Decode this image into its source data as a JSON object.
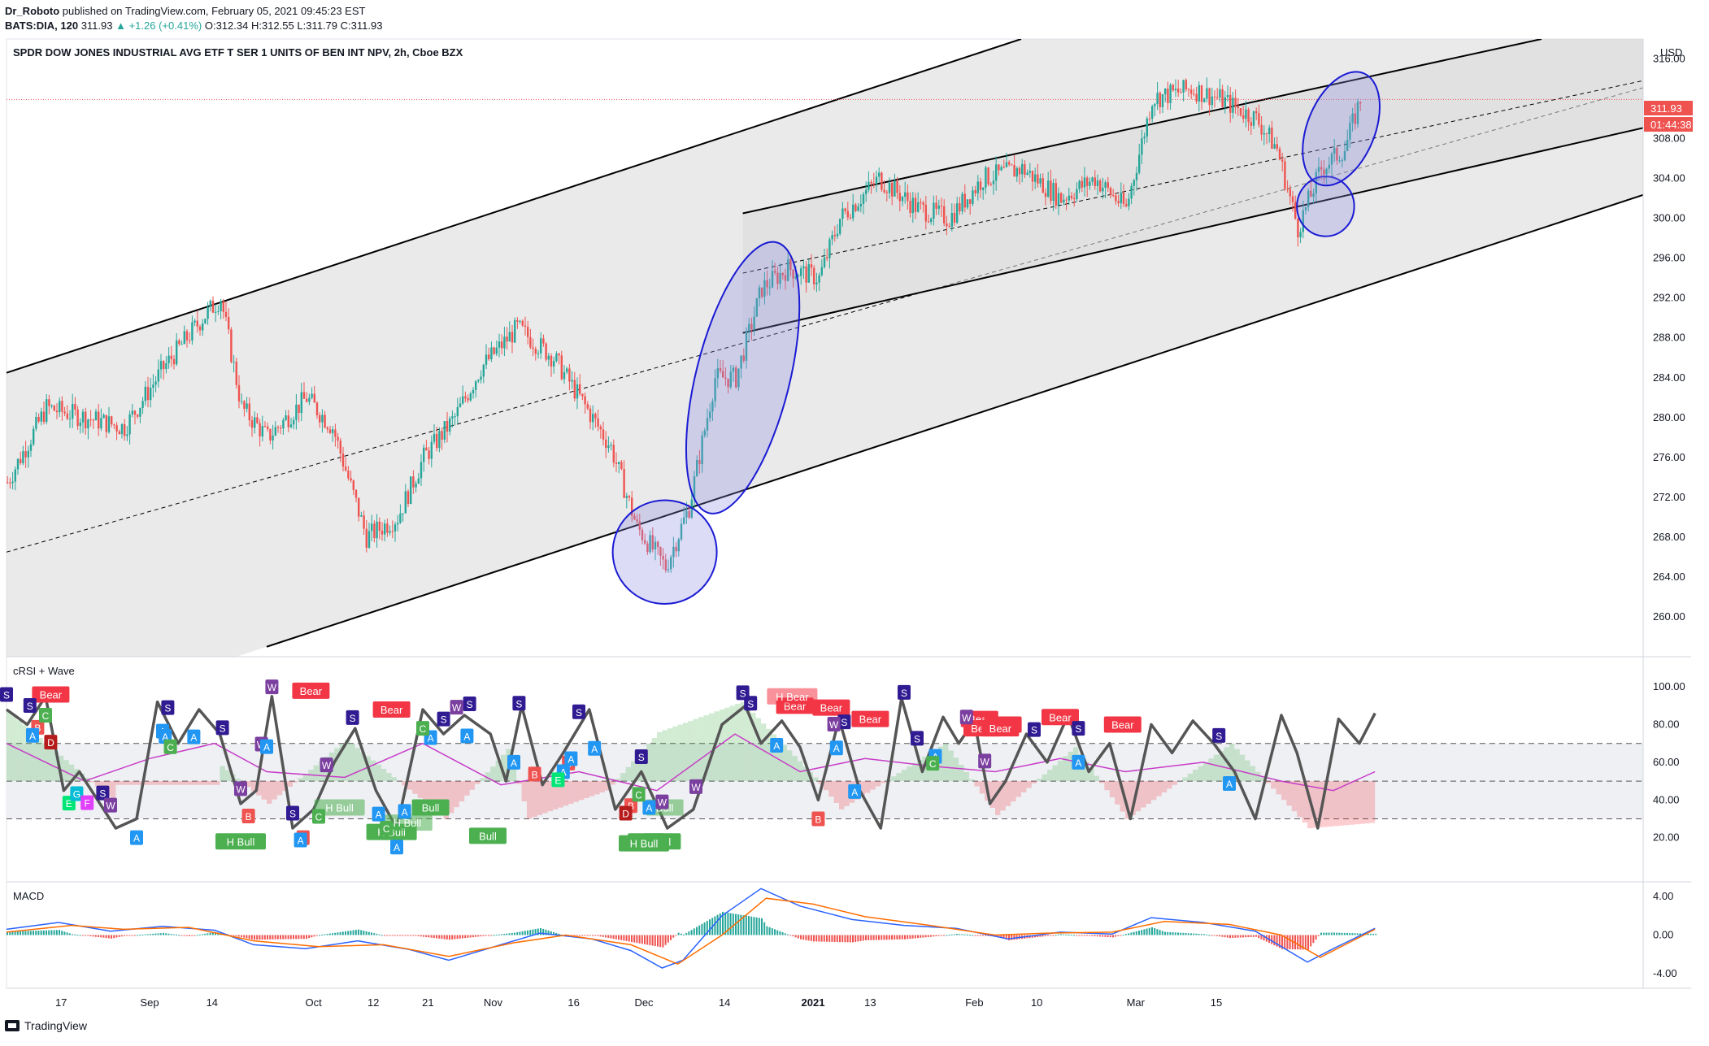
{
  "header": {
    "author": "Dr_Roboto",
    "published": "published on TradingView.com, February 05, 2021 09:45:23 EST",
    "symbol": "BATS:DIA, 120",
    "last": "311.93",
    "change": "▲ +1.26 (+0.41%)",
    "open_label": "O:",
    "open": "312.34",
    "high_label": "H:",
    "high": "312.55",
    "low_label": "L:",
    "low": "311.79",
    "close_label": "C:",
    "close": "311.93",
    "title": "SPDR DOW JONES INDUSTRIAL AVG ETF T SER 1 UNITS OF BEN INT NPV, 2h, Cboe BZX"
  },
  "currency": "USD",
  "price_badge": {
    "price": "311.93",
    "countdown": "01:44:38"
  },
  "footer": {
    "brand": "TradingView"
  },
  "colors": {
    "up": "#26a69a",
    "down": "#ef5350",
    "channel_fill": "#d9d9d9",
    "ellipse_fill": "#8c8ce6",
    "ellipse_stroke": "#1a1ad4",
    "bear": "#f23645",
    "bull": "#4caf50",
    "rsi_line": "#555555",
    "rsi_ma": "#c83cc8",
    "macd": "#2962ff",
    "signal": "#ff6d00"
  },
  "chart_data": [
    {
      "type": "candlestick",
      "title": "SPDR DOW JONES INDUSTRIAL AVG ETF T SER 1 UNITS OF BEN INT NPV, 2h, Cboe BZX",
      "x_ticks": [
        "17",
        "Sep",
        "14",
        "Oct",
        "12",
        "21",
        "Nov",
        "16",
        "Dec",
        "14",
        "2021",
        "13",
        "Feb",
        "10",
        "Mar",
        "15"
      ],
      "y_ticks": [
        "316.00",
        "308.00",
        "304.00",
        "300.00",
        "296.00",
        "292.00",
        "288.00",
        "284.00",
        "280.00",
        "276.00",
        "272.00",
        "268.00",
        "264.00",
        "260.00"
      ],
      "ylim": [
        256,
        318
      ],
      "grid": false,
      "last_price": 311.93,
      "price_path": [
        [
          0,
          273.5
        ],
        [
          15,
          281
        ],
        [
          30,
          280
        ],
        [
          45,
          279
        ],
        [
          60,
          285
        ],
        [
          75,
          290
        ],
        [
          82,
          292
        ],
        [
          90,
          281
        ],
        [
          100,
          278
        ],
        [
          115,
          282
        ],
        [
          125,
          279
        ],
        [
          138,
          268
        ],
        [
          150,
          270
        ],
        [
          160,
          276
        ],
        [
          172,
          280
        ],
        [
          182,
          285
        ],
        [
          196,
          289
        ],
        [
          210,
          286
        ],
        [
          220,
          282
        ],
        [
          232,
          277
        ],
        [
          242,
          269
        ],
        [
          253,
          265
        ],
        [
          262,
          271
        ],
        [
          272,
          284
        ],
        [
          280,
          284
        ],
        [
          290,
          293
        ],
        [
          300,
          295
        ],
        [
          312,
          294
        ],
        [
          320,
          300
        ],
        [
          335,
          304
        ],
        [
          350,
          301
        ],
        [
          362,
          300
        ],
        [
          375,
          304
        ],
        [
          390,
          305
        ],
        [
          405,
          302
        ],
        [
          418,
          304
        ],
        [
          430,
          301
        ],
        [
          440,
          312
        ],
        [
          455,
          313
        ],
        [
          466,
          312
        ],
        [
          480,
          310
        ],
        [
          488,
          307
        ],
        [
          496,
          299
        ],
        [
          505,
          305
        ],
        [
          514,
          307
        ],
        [
          520,
          311.93
        ]
      ],
      "regression_channels": [
        {
          "name": "outer",
          "upper": [
            [
              0,
              284.5
            ],
            [
              390,
              318
            ]
          ],
          "lower": [
            [
              100,
              257
            ],
            [
              695,
              308
            ]
          ],
          "median": [
            [
              0,
              266.5
            ],
            [
              695,
              318
            ]
          ]
        },
        {
          "name": "inner",
          "upper": [
            [
              283,
              300.5
            ],
            [
              590,
              318
            ]
          ],
          "lower": [
            [
              283,
              288.5
            ],
            [
              695,
              313
            ]
          ],
          "median": [
            [
              283,
              294.5
            ],
            [
              695,
              317.5
            ]
          ]
        }
      ],
      "annotations": [
        {
          "shape": "ellipse",
          "center": [
            253,
            266.5
          ],
          "radii": [
            20,
            5.2
          ],
          "rotation": -12
        },
        {
          "shape": "ellipse",
          "center": [
            283,
            284
          ],
          "radii": [
            18,
            14
          ],
          "rotation": 14
        },
        {
          "shape": "ellipse",
          "center": [
            507,
            301.2
          ],
          "radii": [
            11,
            3
          ],
          "rotation": 0
        },
        {
          "shape": "ellipse",
          "center": [
            513,
            309
          ],
          "radii": [
            13,
            6
          ],
          "rotation": 22
        }
      ]
    },
    {
      "type": "line",
      "title": "cRSI + Wave",
      "y_ticks": [
        "100.00",
        "80.00",
        "60.00",
        "40.00",
        "20.00"
      ],
      "ylim": [
        0,
        110
      ],
      "levels": [
        70,
        50,
        30
      ],
      "rsi_path": [
        [
          0,
          88
        ],
        [
          8,
          80
        ],
        [
          15,
          95
        ],
        [
          22,
          45
        ],
        [
          28,
          55
        ],
        [
          35,
          40
        ],
        [
          42,
          25
        ],
        [
          50,
          30
        ],
        [
          58,
          92
        ],
        [
          66,
          70
        ],
        [
          74,
          88
        ],
        [
          82,
          75
        ],
        [
          90,
          38
        ],
        [
          96,
          45
        ],
        [
          102,
          95
        ],
        [
          110,
          25
        ],
        [
          118,
          35
        ],
        [
          126,
          60
        ],
        [
          134,
          78
        ],
        [
          142,
          45
        ],
        [
          150,
          25
        ],
        [
          160,
          88
        ],
        [
          168,
          75
        ],
        [
          176,
          85
        ],
        [
          186,
          75
        ],
        [
          192,
          50
        ],
        [
          198,
          90
        ],
        [
          206,
          48
        ],
        [
          214,
          65
        ],
        [
          224,
          88
        ],
        [
          234,
          35
        ],
        [
          244,
          55
        ],
        [
          254,
          25
        ],
        [
          264,
          35
        ],
        [
          275,
          80
        ],
        [
          284,
          90
        ],
        [
          290,
          70
        ],
        [
          298,
          82
        ],
        [
          305,
          68
        ],
        [
          312,
          40
        ],
        [
          320,
          83
        ],
        [
          328,
          45
        ],
        [
          336,
          25
        ],
        [
          344,
          94
        ],
        [
          352,
          55
        ],
        [
          360,
          84
        ],
        [
          366,
          70
        ],
        [
          372,
          82
        ],
        [
          378,
          38
        ],
        [
          384,
          50
        ],
        [
          392,
          75
        ],
        [
          400,
          60
        ],
        [
          408,
          85
        ],
        [
          416,
          55
        ],
        [
          424,
          70
        ],
        [
          432,
          30
        ],
        [
          440,
          80
        ],
        [
          448,
          65
        ],
        [
          456,
          82
        ],
        [
          464,
          70
        ],
        [
          472,
          55
        ],
        [
          480,
          30
        ],
        [
          490,
          85
        ],
        [
          496,
          65
        ],
        [
          504,
          25
        ],
        [
          512,
          83
        ],
        [
          520,
          70
        ],
        [
          526,
          86
        ]
      ],
      "rsi_ma_path": [
        [
          0,
          70
        ],
        [
          30,
          50
        ],
        [
          55,
          62
        ],
        [
          80,
          70
        ],
        [
          100,
          55
        ],
        [
          130,
          52
        ],
        [
          160,
          70
        ],
        [
          190,
          48
        ],
        [
          220,
          55
        ],
        [
          250,
          45
        ],
        [
          280,
          75
        ],
        [
          305,
          55
        ],
        [
          330,
          62
        ],
        [
          355,
          58
        ],
        [
          380,
          55
        ],
        [
          405,
          62
        ],
        [
          430,
          55
        ],
        [
          460,
          60
        ],
        [
          490,
          50
        ],
        [
          510,
          45
        ],
        [
          526,
          55
        ]
      ],
      "band_path": [
        [
          0,
          87
        ],
        [
          40,
          40
        ],
        [
          42,
          48
        ],
        [
          80,
          48
        ],
        [
          82,
          58
        ],
        [
          100,
          38
        ],
        [
          130,
          72
        ],
        [
          168,
          30
        ],
        [
          192,
          67
        ],
        [
          200,
          30
        ],
        [
          230,
          45
        ],
        [
          250,
          76
        ],
        [
          282,
          92
        ],
        [
          310,
          52
        ],
        [
          320,
          35
        ],
        [
          360,
          70
        ],
        [
          380,
          32
        ],
        [
          410,
          68
        ],
        [
          430,
          30
        ],
        [
          470,
          70
        ],
        [
          500,
          25
        ],
        [
          526,
          28
        ]
      ],
      "labels": [
        {
          "text": "Bear",
          "kind": "bear"
        },
        {
          "text": "Bear",
          "kind": "bear"
        },
        {
          "text": "Bear",
          "kind": "bear"
        },
        {
          "text": "Bear",
          "kind": "bear"
        },
        {
          "text": "Bear",
          "kind": "bear"
        },
        {
          "text": "Bear",
          "kind": "bear"
        },
        {
          "text": "H Bear",
          "kind": "bear-faded"
        },
        {
          "text": "Bear",
          "kind": "bear"
        },
        {
          "text": "Bear",
          "kind": "bear"
        },
        {
          "text": "Bear",
          "kind": "bear"
        },
        {
          "text": "Bear",
          "kind": "bear"
        },
        {
          "text": "Bear",
          "kind": "bear"
        },
        {
          "text": "Bear",
          "kind": "bear"
        },
        {
          "text": "Bull",
          "kind": "bull"
        },
        {
          "text": "H Bull",
          "kind": "bull"
        },
        {
          "text": "H Bull",
          "kind": "bull-faded"
        },
        {
          "text": "Bull",
          "kind": "bull"
        },
        {
          "text": "H Bull",
          "kind": "bull"
        },
        {
          "text": "Bull",
          "kind": "bull"
        },
        {
          "text": "Bull",
          "kind": "bull"
        },
        {
          "text": "Bull",
          "kind": "bull-faded"
        },
        {
          "text": "H Bull",
          "kind": "bull"
        },
        {
          "text": "H Bull",
          "kind": "bull-faded"
        }
      ],
      "markers": [
        "S",
        "S",
        "S",
        "S",
        "S",
        "S",
        "S",
        "S",
        "S",
        "S",
        "S",
        "S",
        "S",
        "S",
        "S",
        "S",
        "S",
        "S",
        "S",
        "S",
        "W",
        "W",
        "W",
        "W",
        "W",
        "W",
        "W",
        "W",
        "W",
        "W",
        "W",
        "B",
        "B",
        "B",
        "B",
        "B",
        "B",
        "B",
        "D",
        "D",
        "A",
        "A",
        "A",
        "A",
        "A",
        "A",
        "A",
        "A",
        "A",
        "A",
        "A",
        "A",
        "A",
        "A",
        "A",
        "A",
        "A",
        "A",
        "A",
        "A",
        "A",
        "A",
        "A",
        "C",
        "C",
        "C",
        "C",
        "C",
        "C",
        "C",
        "E",
        "E",
        "G",
        "F"
      ]
    },
    {
      "type": "line",
      "title": "MACD",
      "y_ticks": [
        "4.00",
        "0.00",
        "-4.00"
      ],
      "ylim": [
        -5.5,
        5.5
      ],
      "macd_path": [
        [
          0,
          0.6
        ],
        [
          20,
          1.3
        ],
        [
          40,
          0.4
        ],
        [
          60,
          0.9
        ],
        [
          80,
          0.5
        ],
        [
          95,
          -1
        ],
        [
          115,
          -1.4
        ],
        [
          135,
          -0.6
        ],
        [
          155,
          -1.5
        ],
        [
          170,
          -2.6
        ],
        [
          185,
          -1.4
        ],
        [
          205,
          0.2
        ],
        [
          225,
          -0.4
        ],
        [
          240,
          -1.6
        ],
        [
          252,
          -3.4
        ],
        [
          260,
          -2.6
        ],
        [
          275,
          2
        ],
        [
          290,
          4.8
        ],
        [
          305,
          3
        ],
        [
          325,
          1.6
        ],
        [
          345,
          1
        ],
        [
          365,
          0.7
        ],
        [
          385,
          -0.4
        ],
        [
          405,
          0.3
        ],
        [
          425,
          0.1
        ],
        [
          440,
          1.8
        ],
        [
          460,
          1.3
        ],
        [
          480,
          0.4
        ],
        [
          500,
          -2.8
        ],
        [
          510,
          -1.4
        ],
        [
          526,
          0.7
        ]
      ],
      "signal_path": [
        [
          0,
          0.3
        ],
        [
          25,
          1
        ],
        [
          45,
          0.6
        ],
        [
          70,
          0.8
        ],
        [
          95,
          -0.6
        ],
        [
          120,
          -1.2
        ],
        [
          145,
          -1
        ],
        [
          170,
          -2.2
        ],
        [
          195,
          -0.8
        ],
        [
          215,
          0
        ],
        [
          240,
          -1
        ],
        [
          258,
          -3
        ],
        [
          275,
          0
        ],
        [
          292,
          3.8
        ],
        [
          310,
          3.2
        ],
        [
          330,
          1.9
        ],
        [
          355,
          1
        ],
        [
          380,
          0
        ],
        [
          400,
          0.2
        ],
        [
          425,
          0.3
        ],
        [
          445,
          1.4
        ],
        [
          470,
          1.1
        ],
        [
          490,
          0
        ],
        [
          505,
          -2.3
        ],
        [
          526,
          0.6
        ]
      ]
    }
  ]
}
